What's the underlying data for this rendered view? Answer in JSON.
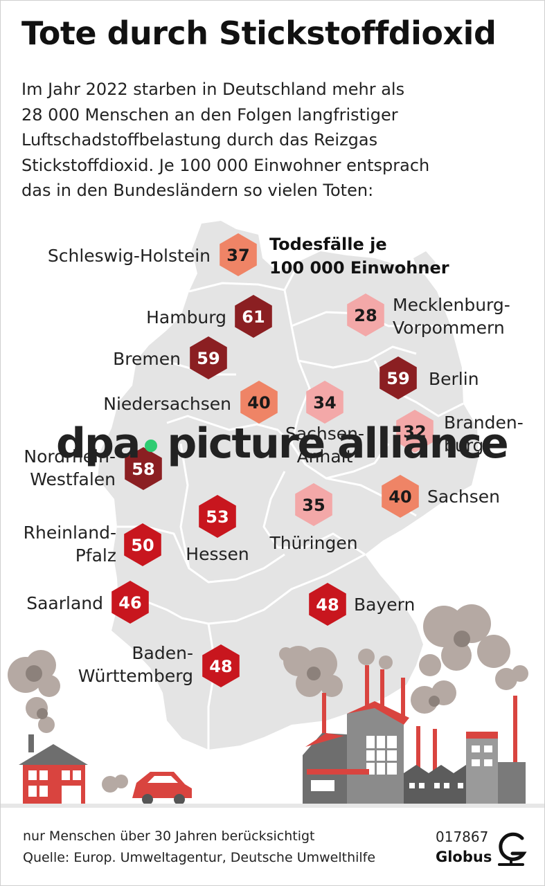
{
  "title": "Tote durch Stickstoffdioxid",
  "intro_lines": [
    "Im Jahr 2022 starben in Deutschland mehr als",
    "28 000 Menschen an den Folgen langfristiger",
    "Luftschadstoffbelastung durch das Reizgas",
    "Stickstoffdioxid. Je 100 000 Einwohner entsprach",
    "das in den Bundesländern so vielen Toten:"
  ],
  "colors": {
    "map": "#e4e4e4",
    "border": "#ffffff",
    "scale": [
      "#f3a8a8",
      "#ef8466",
      "#c8161e",
      "#8b1f22"
    ]
  },
  "chart_data": {
    "type": "map",
    "legend": [
      "Todesfälle je",
      "100 000 Einwohner"
    ],
    "regions": [
      {
        "label": [
          "Schleswig-Holstein"
        ],
        "value": 37
      },
      {
        "label": [
          "Hamburg"
        ],
        "value": 61
      },
      {
        "label": [
          "Mecklenburg-",
          "Vorpommern"
        ],
        "value": 28
      },
      {
        "label": [
          "Bremen"
        ],
        "value": 59
      },
      {
        "label": [
          "Berlin"
        ],
        "value": 59
      },
      {
        "label": [
          "Niedersachsen"
        ],
        "value": 40
      },
      {
        "label": [
          "Sachsen-",
          "Anhalt"
        ],
        "value": 34
      },
      {
        "label": [
          "Branden-",
          "burg"
        ],
        "value": 32
      },
      {
        "label": [
          "Nordrhein-",
          "Westfalen"
        ],
        "value": 58
      },
      {
        "label": [
          "Sachsen"
        ],
        "value": 40
      },
      {
        "label": [
          "Hessen"
        ],
        "value": 53
      },
      {
        "label": [
          "Thüringen"
        ],
        "value": 35
      },
      {
        "label": [
          "Rheinland-",
          "Pfalz"
        ],
        "value": 50
      },
      {
        "label": [
          "Saarland"
        ],
        "value": 46
      },
      {
        "label": [
          "Bayern"
        ],
        "value": 48
      },
      {
        "label": [
          "Baden-",
          "Württemberg"
        ],
        "value": 48
      }
    ]
  },
  "watermark": {
    "left": "dpa",
    "right": "picture alliance"
  },
  "footer": {
    "note": "nur Menschen über 30 Jahren berücksichtigt",
    "source": "Quelle: Europ. Umweltagentur, Deutsche Umwelthilfe",
    "id": "017867",
    "brand": "Globus"
  }
}
